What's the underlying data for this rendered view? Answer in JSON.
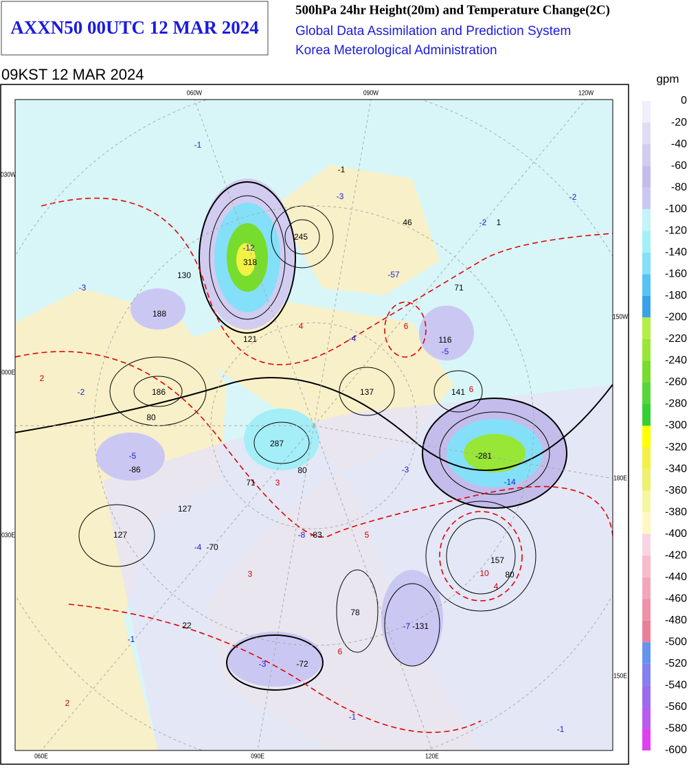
{
  "header": {
    "product": "AXXN50 00UTC 12 MAR 2024",
    "title": "500hPa 24hr Height(20m) and Temperature Change(2C)",
    "system": "Global Data Assimilation and Prediction System",
    "agency": "Korea Meterological Administration",
    "valid_time": "09KST 12 MAR 2024"
  },
  "legend": {
    "unit": "gpm",
    "levels": [
      0,
      -20,
      -40,
      -60,
      -80,
      -100,
      -120,
      -140,
      -160,
      -180,
      -200,
      -220,
      -240,
      -260,
      -280,
      -300,
      -320,
      -340,
      -360,
      -380,
      -400,
      -420,
      -440,
      -460,
      -480,
      -500,
      -520,
      -540,
      -560,
      -580,
      -600
    ],
    "colors": [
      "#efeefa",
      "#e0dcf5",
      "#d2ccf0",
      "#c4bcea",
      "#cac8f2",
      "#c2f4f8",
      "#a4eef8",
      "#84e0f8",
      "#56c4f2",
      "#3aa2ea",
      "#b4ee44",
      "#98e636",
      "#78dc2c",
      "#56d63a",
      "#34d034",
      "#ffff00",
      "#f2f244",
      "#f0f070",
      "#f6f6a0",
      "#fff6c4",
      "#f8d4e2",
      "#f6bccc",
      "#f2a6ba",
      "#ee92aa",
      "#ea8098",
      "#6494f0",
      "#8480f0",
      "#9a6cf0",
      "#b85cf0",
      "#e040f0"
    ]
  },
  "map": {
    "top_labels": [
      "060W",
      "090W",
      "120W"
    ],
    "left_labels": [
      "030W",
      "000E",
      "030E"
    ],
    "right_labels": [
      "150W",
      "180E",
      "150E"
    ],
    "bottom_labels": [
      "060E",
      "090E",
      "120E"
    ],
    "labels": [
      "-1",
      "-1",
      "-3",
      "-2",
      "46",
      "-2",
      "1",
      "-12",
      "245",
      "318",
      "130",
      "-3",
      "-57",
      "71",
      "188",
      "4",
      "6",
      "-4",
      "121",
      "116",
      "-5",
      "2",
      "-2",
      "186",
      "137",
      "141",
      "6",
      "80",
      "287",
      "-5",
      "-281",
      "-86",
      "-14",
      "80",
      "71",
      "3",
      "-3",
      "127",
      "127",
      "-8",
      "-83",
      "5",
      "-4",
      "-70",
      "3",
      "157",
      "10",
      "4",
      "80",
      "78",
      "-7",
      "-131",
      "22",
      "-1",
      "-3",
      "-72",
      "6",
      "2",
      "-1",
      "-1"
    ]
  }
}
